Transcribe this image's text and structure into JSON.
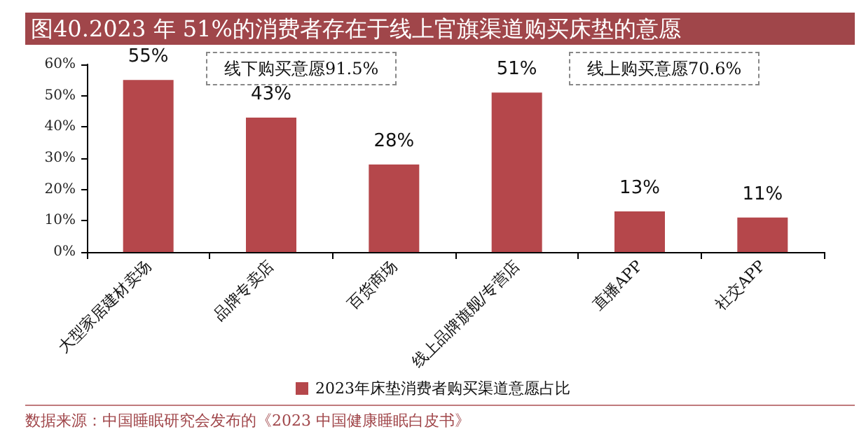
{
  "chart_data": {
    "type": "bar",
    "title": "图40.2023 年 51%的消费者存在于线上官旗渠道购买床垫的意愿",
    "categories": [
      "大型家居建材卖场",
      "品牌专卖店",
      "百货商场",
      "线上品牌旗舰/专营店",
      "直播APP",
      "社交APP"
    ],
    "series": [
      {
        "name": "2023年床垫消费者购买渠道意愿占比",
        "color": "#b5474b",
        "values": [
          55,
          43,
          28,
          51,
          13,
          11
        ],
        "value_labels": [
          "55%",
          "43%",
          "28%",
          "51%",
          "13%",
          "11%"
        ]
      }
    ],
    "ylim": [
      0,
      60
    ],
    "yticks": [
      {
        "value": 0,
        "label": "0%"
      },
      {
        "value": 10,
        "label": "10%"
      },
      {
        "value": 20,
        "label": "20%"
      },
      {
        "value": 30,
        "label": "30%"
      },
      {
        "value": 40,
        "label": "40%"
      },
      {
        "value": 50,
        "label": "50%"
      },
      {
        "value": 60,
        "label": "60%"
      }
    ],
    "grid": false,
    "legend": "bottom",
    "annotations": [
      "线下购买意愿91.5%",
      "线上购买意愿70.6%",
      "数据来源：中国睡眠研究会发布的《2023 中国健康睡眠白皮书》"
    ]
  }
}
